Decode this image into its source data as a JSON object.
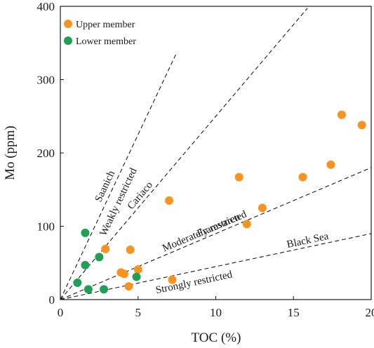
{
  "chart_data": {
    "type": "scatter",
    "xlabel": "TOC (%)",
    "ylabel": "Mo (ppm)",
    "xlim": [
      0,
      20
    ],
    "ylim": [
      0,
      400
    ],
    "xticks": [
      0,
      5,
      10,
      15,
      20
    ],
    "yticks": [
      0,
      100,
      200,
      300,
      400
    ],
    "grid": false,
    "legend_position": "top-left",
    "colors": {
      "upper": "#f7931e",
      "lower": "#1fa055",
      "axis": "#1a1a1a"
    },
    "series": [
      {
        "name": "Upper member",
        "color": "#f7931e",
        "points": [
          [
            2.9,
            69
          ],
          [
            4.5,
            68
          ],
          [
            3.9,
            37
          ],
          [
            4.1,
            35
          ],
          [
            5.0,
            41
          ],
          [
            4.4,
            18
          ],
          [
            7.2,
            27
          ],
          [
            7.0,
            135
          ],
          [
            11.5,
            167
          ],
          [
            13.0,
            125
          ],
          [
            12.0,
            103
          ],
          [
            15.6,
            167
          ],
          [
            17.4,
            184
          ],
          [
            18.1,
            252
          ],
          [
            19.4,
            238
          ]
        ]
      },
      {
        "name": "Lower member",
        "color": "#1fa055",
        "points": [
          [
            1.6,
            91
          ],
          [
            1.6,
            47
          ],
          [
            2.5,
            58
          ],
          [
            1.1,
            23
          ],
          [
            1.8,
            14
          ],
          [
            2.8,
            14
          ],
          [
            4.9,
            31
          ]
        ]
      }
    ],
    "reference_lines": [
      {
        "slope": 45,
        "x_end": 7.5,
        "label": "Saanich"
      },
      {
        "slope": 45,
        "x_end": 7.5,
        "label": "Weakly restricted"
      },
      {
        "slope": 25,
        "x_end": 15.9,
        "label": "Cariaco"
      },
      {
        "slope": 9,
        "x_end": 20,
        "label": "Moderately restricted"
      },
      {
        "slope": 9,
        "x_end": 20,
        "label": "Framvaren"
      },
      {
        "slope": 4.5,
        "x_end": 20,
        "label": "Black Sea"
      },
      {
        "slope": 4.5,
        "x_end": 20,
        "label": "Strongly restricted"
      }
    ]
  }
}
